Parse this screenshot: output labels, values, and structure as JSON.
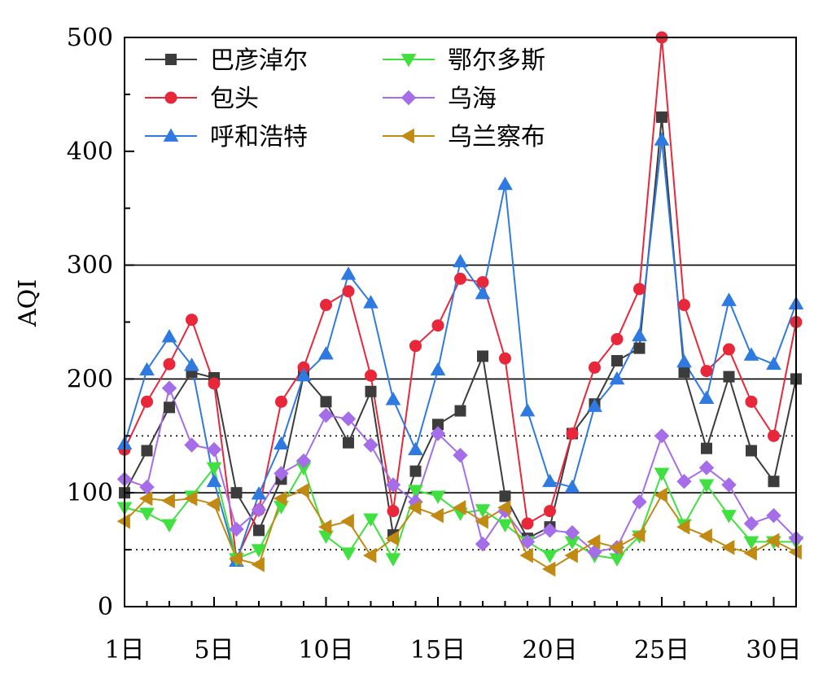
{
  "chart_data": {
    "type": "line",
    "title": "",
    "xlabel": "",
    "ylabel": "AQI",
    "xlim": [
      1,
      31
    ],
    "ylim": [
      0,
      500
    ],
    "x_tick_values": [
      1,
      5,
      10,
      15,
      20,
      25,
      30
    ],
    "x_tick_labels": [
      "1日",
      "5日",
      "10日",
      "15日",
      "20日",
      "25日",
      "30日"
    ],
    "y_ticks": [
      0,
      100,
      200,
      300,
      400,
      500
    ],
    "reference_lines": [
      {
        "y": 300,
        "style": "solid"
      },
      {
        "y": 200,
        "style": "solid"
      },
      {
        "y": 150,
        "style": "dotted"
      },
      {
        "y": 100,
        "style": "solid"
      },
      {
        "y": 50,
        "style": "dotted"
      }
    ],
    "legend_position": "top-left",
    "x": [
      1,
      2,
      3,
      4,
      5,
      6,
      7,
      8,
      9,
      10,
      11,
      12,
      13,
      14,
      15,
      16,
      17,
      18,
      19,
      20,
      21,
      22,
      23,
      24,
      25,
      26,
      27,
      28,
      29,
      30,
      31
    ],
    "series": [
      {
        "name": "巴彦淖尔",
        "color": "#3c3c3c",
        "marker": "square",
        "values": [
          100,
          137,
          175,
          206,
          201,
          100,
          67,
          112,
          203,
          180,
          144,
          189,
          63,
          119,
          160,
          172,
          220,
          97,
          60,
          70,
          152,
          178,
          216,
          227,
          430,
          206,
          139,
          202,
          137,
          110,
          200
        ]
      },
      {
        "name": "包头",
        "color": "#e8283a",
        "marker": "circle",
        "values": [
          138,
          180,
          213,
          252,
          196,
          42,
          85,
          180,
          210,
          265,
          277,
          203,
          84,
          229,
          247,
          288,
          285,
          218,
          73,
          84,
          152,
          210,
          235,
          279,
          500,
          265,
          207,
          226,
          180,
          150,
          250
        ]
      },
      {
        "name": "呼和浩特",
        "color": "#2f7ae0",
        "marker": "triangle-up",
        "values": [
          143,
          208,
          237,
          212,
          110,
          40,
          99,
          143,
          203,
          222,
          292,
          267,
          182,
          138,
          208,
          303,
          275,
          371,
          172,
          110,
          105,
          176,
          200,
          238,
          410,
          215,
          183,
          269,
          221,
          213,
          266
        ]
      },
      {
        "name": "鄂尔多斯",
        "color": "#3fe03f",
        "marker": "triangle-down",
        "values": [
          87,
          82,
          72,
          97,
          122,
          42,
          50,
          88,
          122,
          62,
          47,
          77,
          42,
          102,
          97,
          82,
          85,
          72,
          57,
          45,
          57,
          45,
          42,
          62,
          117,
          72,
          107,
          80,
          57,
          57,
          57
        ]
      },
      {
        "name": "乌海",
        "color": "#a56de8",
        "marker": "diamond",
        "values": [
          112,
          105,
          192,
          142,
          138,
          68,
          85,
          117,
          128,
          168,
          165,
          142,
          107,
          92,
          152,
          133,
          55,
          84,
          57,
          67,
          65,
          48,
          52,
          92,
          150,
          110,
          122,
          107,
          73,
          80,
          60
        ]
      },
      {
        "name": "乌兰察布",
        "color": "#c08a13",
        "marker": "triangle-left",
        "values": [
          75,
          95,
          93,
          95,
          90,
          42,
          37,
          95,
          102,
          70,
          75,
          45,
          60,
          87,
          80,
          87,
          75,
          87,
          45,
          33,
          45,
          57,
          52,
          63,
          98,
          70,
          62,
          52,
          47,
          58,
          48
        ]
      }
    ]
  }
}
